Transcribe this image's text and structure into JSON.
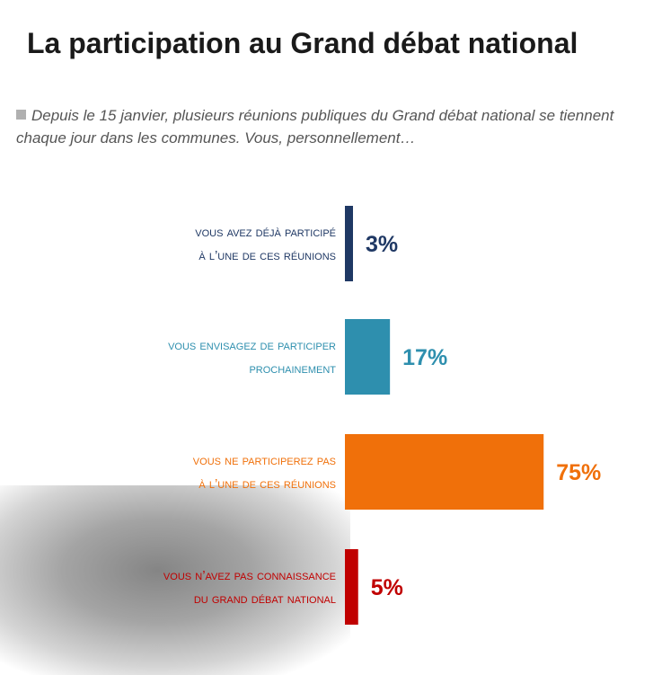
{
  "title": "La participation au Grand débat national",
  "subtitle": "Depuis le 15 janvier, plusieurs réunions publiques du Grand débat national se tiennent chaque jour dans les communes. Vous, personnellement…",
  "chart_data": {
    "type": "bar",
    "orientation": "horizontal",
    "categories": [
      [
        "Vous avez déjà participé",
        "à l’une de ces réunions"
      ],
      [
        "Vous envisagez de participer",
        "prochainement"
      ],
      [
        "Vous ne participerez pas",
        "à l’une de ces réunions"
      ],
      [
        "Vous n’avez pas connaissance",
        "du Grand débat national"
      ]
    ],
    "values": [
      3,
      17,
      75,
      5
    ],
    "value_labels": [
      "3%",
      "17%",
      "75%",
      "5%"
    ],
    "colors": [
      "#1f3864",
      "#2e8fae",
      "#f0700a",
      "#c00000"
    ],
    "unit": "%",
    "xlim": [
      0,
      100
    ],
    "grid": false,
    "legend": "none"
  }
}
